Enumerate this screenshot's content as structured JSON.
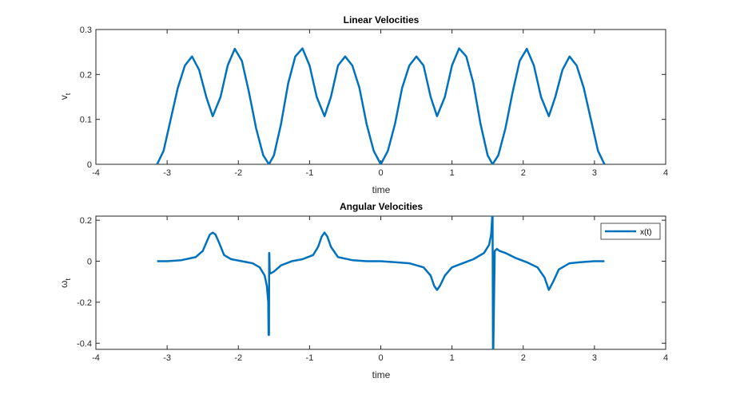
{
  "chart_data": [
    {
      "type": "line",
      "title": "Linear Velocities",
      "xlabel": "time",
      "ylabel": "v_t",
      "ylabel_main": "v",
      "ylabel_sub": "t",
      "xlim": [
        -4,
        4
      ],
      "ylim": [
        0,
        0.3
      ],
      "xticks": [
        "-4",
        "-3",
        "-2",
        "-1",
        "0",
        "1",
        "2",
        "3",
        "4"
      ],
      "yticks": [
        "0",
        "0.1",
        "0.2",
        "0.3"
      ],
      "grid": false,
      "series_color": "#0072BD",
      "x": [
        -3.14,
        -3.05,
        -2.95,
        -2.85,
        -2.75,
        -2.65,
        -2.55,
        -2.45,
        -2.36,
        -2.25,
        -2.15,
        -2.05,
        -1.95,
        -1.85,
        -1.75,
        -1.65,
        -1.57,
        -1.5,
        -1.4,
        -1.3,
        -1.2,
        -1.1,
        -1.0,
        -0.9,
        -0.79,
        -0.7,
        -0.6,
        -0.5,
        -0.4,
        -0.3,
        -0.2,
        -0.1,
        0.0,
        0.1,
        0.2,
        0.3,
        0.4,
        0.5,
        0.6,
        0.7,
        0.79,
        0.9,
        1.0,
        1.1,
        1.2,
        1.3,
        1.4,
        1.5,
        1.57,
        1.65,
        1.75,
        1.85,
        1.95,
        2.05,
        2.15,
        2.25,
        2.36,
        2.45,
        2.55,
        2.65,
        2.75,
        2.85,
        2.95,
        3.05,
        3.14
      ],
      "y": [
        0.0,
        0.03,
        0.1,
        0.17,
        0.22,
        0.24,
        0.21,
        0.15,
        0.107,
        0.15,
        0.22,
        0.257,
        0.23,
        0.16,
        0.08,
        0.02,
        0.0,
        0.02,
        0.09,
        0.18,
        0.24,
        0.258,
        0.22,
        0.15,
        0.107,
        0.15,
        0.22,
        0.24,
        0.22,
        0.17,
        0.09,
        0.03,
        0.0,
        0.03,
        0.09,
        0.17,
        0.22,
        0.24,
        0.22,
        0.15,
        0.107,
        0.15,
        0.22,
        0.258,
        0.24,
        0.18,
        0.09,
        0.02,
        0.0,
        0.02,
        0.08,
        0.16,
        0.23,
        0.257,
        0.22,
        0.15,
        0.107,
        0.15,
        0.21,
        0.24,
        0.22,
        0.17,
        0.1,
        0.03,
        0.0
      ]
    },
    {
      "type": "line",
      "title": "Angular Velocities",
      "xlabel": "time",
      "ylabel": "ω_t",
      "ylabel_main": "ω",
      "ylabel_sub": "t",
      "xlim": [
        -4,
        4
      ],
      "ylim": [
        -0.43,
        0.22
      ],
      "xticks": [
        "-4",
        "-3",
        "-2",
        "-1",
        "0",
        "1",
        "2",
        "3",
        "4"
      ],
      "yticks": [
        "0.2",
        "0",
        "-0.2",
        "-0.4"
      ],
      "grid": false,
      "legend": {
        "entries": [
          "x(t)"
        ],
        "placement": "top-right"
      },
      "series_color": "#0072BD",
      "x": [
        -3.14,
        -3.0,
        -2.8,
        -2.6,
        -2.5,
        -2.45,
        -2.4,
        -2.36,
        -2.32,
        -2.27,
        -2.2,
        -2.1,
        -1.95,
        -1.8,
        -1.7,
        -1.63,
        -1.6,
        -1.58,
        -1.575,
        -1.57,
        -1.568,
        -1.565,
        -1.56,
        -1.55,
        -1.5,
        -1.4,
        -1.25,
        -1.1,
        -0.95,
        -0.88,
        -0.83,
        -0.79,
        -0.75,
        -0.7,
        -0.6,
        -0.4,
        -0.2,
        0.0,
        0.2,
        0.4,
        0.6,
        0.7,
        0.75,
        0.79,
        0.83,
        0.9,
        1.0,
        1.15,
        1.3,
        1.45,
        1.52,
        1.55,
        1.565,
        1.57,
        1.575,
        1.58,
        1.6,
        1.63,
        1.67,
        1.75,
        1.9,
        2.05,
        2.2,
        2.3,
        2.36,
        2.42,
        2.5,
        2.65,
        2.8,
        3.0,
        3.14
      ],
      "y": [
        0.0,
        0.0,
        0.005,
        0.02,
        0.05,
        0.09,
        0.13,
        0.14,
        0.13,
        0.09,
        0.03,
        0.01,
        0.0,
        -0.01,
        -0.03,
        -0.07,
        -0.12,
        -0.2,
        -0.36,
        -0.36,
        0.04,
        0.04,
        -0.06,
        -0.06,
        -0.05,
        -0.02,
        0.0,
        0.01,
        0.03,
        0.07,
        0.12,
        0.14,
        0.12,
        0.07,
        0.02,
        0.005,
        0.0,
        0.0,
        -0.005,
        -0.01,
        -0.03,
        -0.07,
        -0.12,
        -0.14,
        -0.12,
        -0.07,
        -0.03,
        -0.01,
        0.01,
        0.04,
        0.08,
        0.13,
        0.22,
        0.22,
        -0.43,
        -0.43,
        0.05,
        0.06,
        0.05,
        0.04,
        0.015,
        -0.005,
        -0.03,
        -0.08,
        -0.14,
        -0.1,
        -0.04,
        -0.01,
        -0.005,
        0.0,
        0.0
      ]
    }
  ]
}
